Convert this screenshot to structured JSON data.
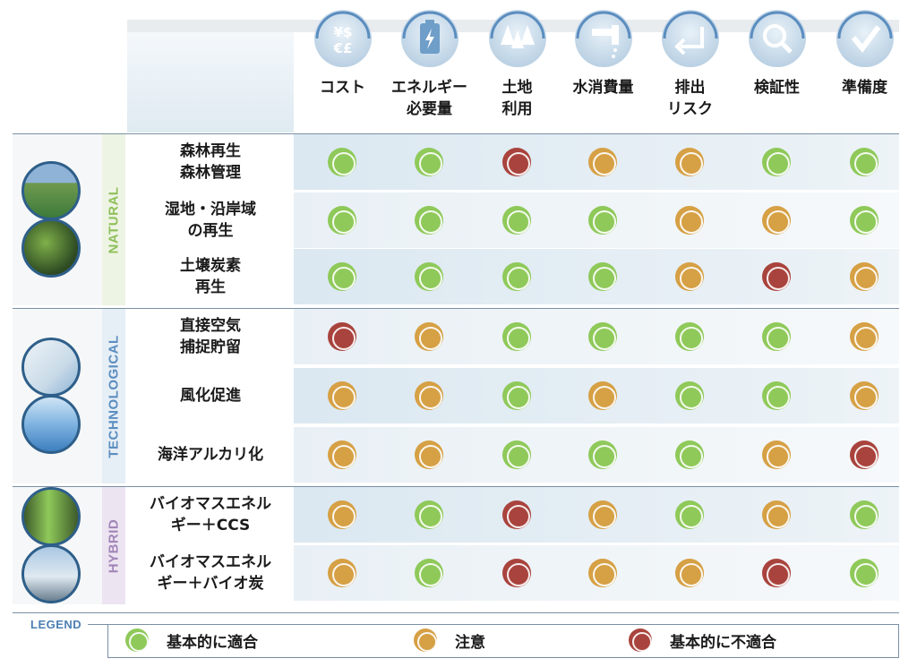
{
  "colors": {
    "good": "#8fc95a",
    "caution": "#d6a045",
    "bad": "#a9433d"
  },
  "columns": [
    {
      "label": "コスト",
      "icon": "currency-icon"
    },
    {
      "label": "エネルギー\n必要量",
      "icon": "battery-icon"
    },
    {
      "label": "土地\n利用",
      "icon": "trees-icon"
    },
    {
      "label": "水消費量",
      "icon": "faucet-icon"
    },
    {
      "label": "排出\nリスク",
      "icon": "return-arrow-icon"
    },
    {
      "label": "検証性",
      "icon": "magnifier-icon"
    },
    {
      "label": "準備度",
      "icon": "checkmark-icon"
    }
  ],
  "groups": [
    {
      "title": "NATURAL",
      "color": "#8fbf5a",
      "bg": "#eef4e4"
    },
    {
      "title": "TECHNOLOGICAL",
      "color": "#5b8dbf",
      "bg": "#e6eef6"
    },
    {
      "title": "HYBRID",
      "color": "#a285b8",
      "bg": "#ece4f1"
    }
  ],
  "rows": [
    {
      "label": "森林再生\n森林管理",
      "group": 0,
      "ratings": [
        "good",
        "good",
        "bad",
        "caution",
        "caution",
        "good",
        "good"
      ]
    },
    {
      "label": "湿地・沿岸域\nの再生",
      "group": 0,
      "ratings": [
        "good",
        "good",
        "good",
        "good",
        "caution",
        "caution",
        "good"
      ]
    },
    {
      "label": "土壌炭素\n再生",
      "group": 0,
      "ratings": [
        "good",
        "good",
        "good",
        "good",
        "caution",
        "bad",
        "caution"
      ]
    },
    {
      "label": "直接空気\n捕捉貯留",
      "group": 1,
      "ratings": [
        "bad",
        "caution",
        "good",
        "good",
        "good",
        "good",
        "caution"
      ]
    },
    {
      "label": "風化促進",
      "group": 1,
      "ratings": [
        "caution",
        "caution",
        "good",
        "caution",
        "good",
        "good",
        "caution"
      ]
    },
    {
      "label": "海洋アルカリ化",
      "group": 1,
      "ratings": [
        "caution",
        "caution",
        "good",
        "good",
        "good",
        "caution",
        "bad"
      ]
    },
    {
      "label": "バイオマスエネル\nギー＋CCS",
      "group": 2,
      "ratings": [
        "caution",
        "good",
        "bad",
        "caution",
        "good",
        "caution",
        "good"
      ]
    },
    {
      "label": "バイオマスエネル\nギー＋バイオ炭",
      "group": 2,
      "ratings": [
        "caution",
        "good",
        "bad",
        "caution",
        "caution",
        "bad",
        "good"
      ]
    }
  ],
  "legend": {
    "title": "LEGEND",
    "items": [
      {
        "label": "基本的に適合",
        "rating": "good"
      },
      {
        "label": "注意",
        "rating": "caution"
      },
      {
        "label": "基本的に不適合",
        "rating": "bad"
      }
    ]
  }
}
